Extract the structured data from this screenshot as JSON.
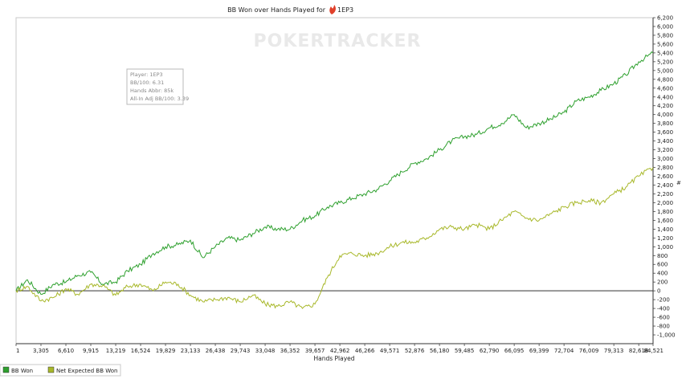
{
  "chart_data": {
    "type": "line",
    "title": "BB Won over Hands Played for",
    "player_name": "1EP3",
    "xlabel": "Hands Played",
    "ylabel": "",
    "x_ticks": [
      1,
      3305,
      6610,
      9915,
      13219,
      16524,
      19829,
      23133,
      26438,
      29743,
      33048,
      36352,
      39657,
      42962,
      46266,
      49571,
      52876,
      56180,
      59485,
      62790,
      66095,
      69399,
      72704,
      76009,
      79313,
      82618,
      84521
    ],
    "x_tick_labels": [
      "1",
      "3,305",
      "6,610",
      "9,915",
      "13,219",
      "16,524",
      "19,829",
      "23,133",
      "26,438",
      "29,743",
      "33,048",
      "36,352",
      "39,657",
      "42,962",
      "46,266",
      "49,571",
      "52,876",
      "56,180",
      "59,485",
      "62,790",
      "66,095",
      "69,399",
      "72,704",
      "76,009",
      "79,313",
      "82,618",
      "84,521"
    ],
    "xlim": [
      1,
      84521
    ],
    "ylim": [
      -1200,
      6200
    ],
    "y_tick_step": 200,
    "grid": false,
    "legend_position": "bottom-left",
    "series": [
      {
        "name": "BB Won",
        "color": "#2ea02e",
        "x": [
          1,
          1500,
          3305,
          5000,
          6610,
          8200,
          9915,
          11500,
          13219,
          14800,
          16524,
          18200,
          19829,
          21500,
          23133,
          24800,
          26438,
          28100,
          29743,
          31400,
          33048,
          34700,
          36352,
          38000,
          39657,
          41300,
          42962,
          44600,
          46266,
          47900,
          49571,
          51200,
          52876,
          54500,
          56180,
          57800,
          59485,
          61100,
          62790,
          64400,
          66095,
          67700,
          69399,
          71000,
          72704,
          74300,
          76009,
          77600,
          79313,
          80900,
          82618,
          84521
        ],
        "y": [
          0,
          250,
          -80,
          150,
          200,
          350,
          420,
          150,
          200,
          450,
          600,
          850,
          1000,
          1050,
          1150,
          750,
          1000,
          1200,
          1150,
          1300,
          1450,
          1400,
          1400,
          1600,
          1700,
          1900,
          2000,
          2100,
          2200,
          2300,
          2500,
          2700,
          2900,
          3000,
          3200,
          3400,
          3500,
          3550,
          3700,
          3800,
          4000,
          3700,
          3800,
          3900,
          4050,
          4300,
          4400,
          4550,
          4700,
          4900,
          5200,
          5400
        ]
      },
      {
        "name": "Net Expected BB Won",
        "color": "#a8b82a",
        "x": [
          1,
          1500,
          3305,
          5000,
          6610,
          8200,
          9915,
          11500,
          13219,
          14800,
          16524,
          18200,
          19829,
          21500,
          23133,
          24800,
          26438,
          28100,
          29743,
          31400,
          33048,
          34700,
          36352,
          38000,
          39657,
          41300,
          42962,
          44600,
          46266,
          47900,
          49571,
          51200,
          52876,
          54500,
          56180,
          57800,
          59485,
          61100,
          62790,
          64400,
          66095,
          67700,
          69399,
          71000,
          72704,
          74300,
          76009,
          77600,
          79313,
          80900,
          82618,
          84521
        ],
        "y": [
          0,
          100,
          -230,
          -150,
          50,
          -80,
          150,
          120,
          -100,
          100,
          150,
          0,
          200,
          150,
          -100,
          -250,
          -200,
          -150,
          -250,
          -100,
          -300,
          -350,
          -250,
          -400,
          -300,
          300,
          800,
          850,
          800,
          850,
          1000,
          1100,
          1100,
          1200,
          1400,
          1450,
          1400,
          1500,
          1400,
          1600,
          1800,
          1650,
          1600,
          1750,
          1900,
          2000,
          2050,
          2000,
          2200,
          2350,
          2600,
          2800
        ]
      }
    ],
    "info_box": {
      "player": "Player: 1EP3",
      "bb100": "BB/100: 6.31",
      "hands": "Hands Abbr: 85k",
      "allin": "All-In Adj BB/100: 3.39"
    },
    "watermark": "POKERTRACKER"
  }
}
